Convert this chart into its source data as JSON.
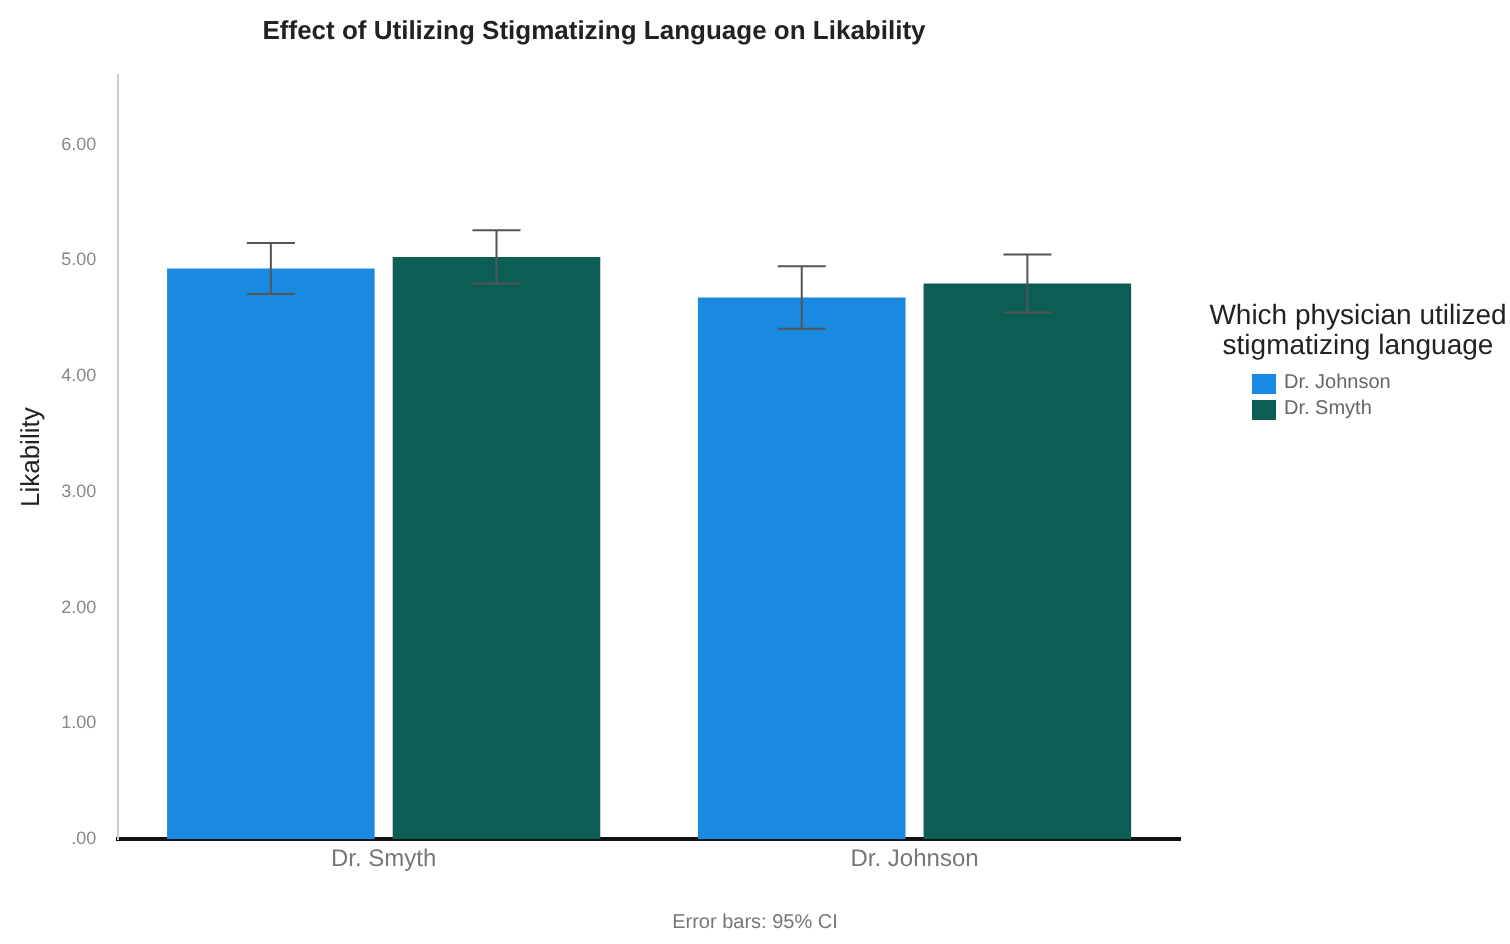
{
  "chart_data": {
    "type": "bar",
    "title": "Effect of Utilizing Stigmatizing Language on Likability",
    "ylabel": "Likability",
    "legend_title": "Which physician utilized stigmatizing language",
    "categories": [
      "Dr. Smyth",
      "Dr. Johnson"
    ],
    "series": [
      {
        "name": "Dr. Johnson",
        "color": "#1a8ae0",
        "values": [
          4.93,
          4.68
        ],
        "errors": [
          0.22,
          0.27
        ]
      },
      {
        "name": "Dr. Smyth",
        "color": "#0c5e55",
        "values": [
          5.03,
          4.8
        ],
        "errors": [
          0.23,
          0.25
        ]
      }
    ],
    "ylim": [
      0,
      6.6
    ],
    "yticks": [
      {
        "value": 0,
        "label": ".00"
      },
      {
        "value": 1,
        "label": "1.00"
      },
      {
        "value": 2,
        "label": "2.00"
      },
      {
        "value": 3,
        "label": "3.00"
      },
      {
        "value": 4,
        "label": "4.00"
      },
      {
        "value": 5,
        "label": "5.00"
      },
      {
        "value": 6,
        "label": "6.00"
      }
    ],
    "grid": false,
    "legend": "right",
    "annotations": [
      "Error bars: 95% CI"
    ]
  }
}
